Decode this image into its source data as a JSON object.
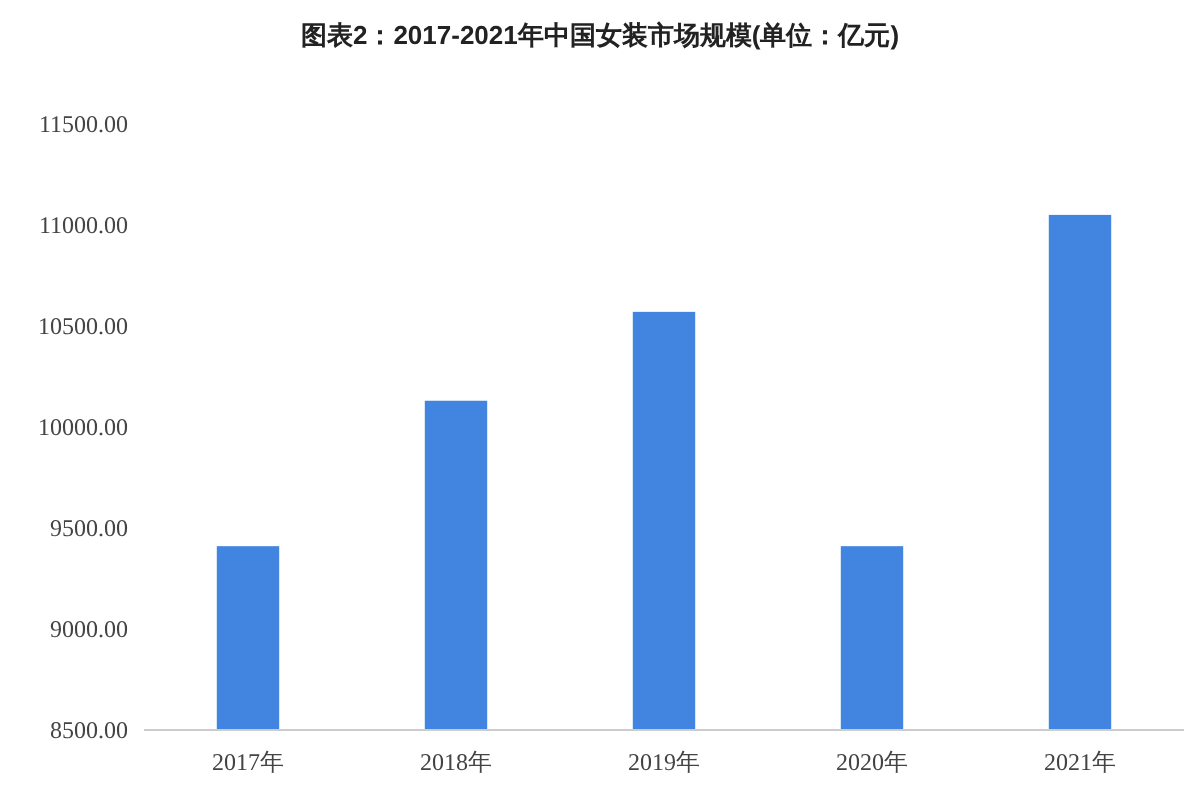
{
  "chart_data": {
    "type": "bar",
    "title": "图表2：2017-2021年中国女装市场规模(单位：亿元)",
    "categories": [
      "2017年",
      "2018年",
      "2019年",
      "2020年",
      "2021年"
    ],
    "values": [
      9410,
      10130,
      10570,
      9410,
      11050
    ],
    "color": "#4285e0",
    "ylim": [
      8500,
      11500
    ],
    "yticks": [
      {
        "value": 8500,
        "label": "8500.00"
      },
      {
        "value": 9000,
        "label": "9000.00"
      },
      {
        "value": 9500,
        "label": "9500.00"
      },
      {
        "value": 10000,
        "label": "10000.00"
      },
      {
        "value": 10500,
        "label": "10500.00"
      },
      {
        "value": 11000,
        "label": "11000.00"
      },
      {
        "value": 11500,
        "label": "11500.00"
      }
    ],
    "grid": false
  }
}
